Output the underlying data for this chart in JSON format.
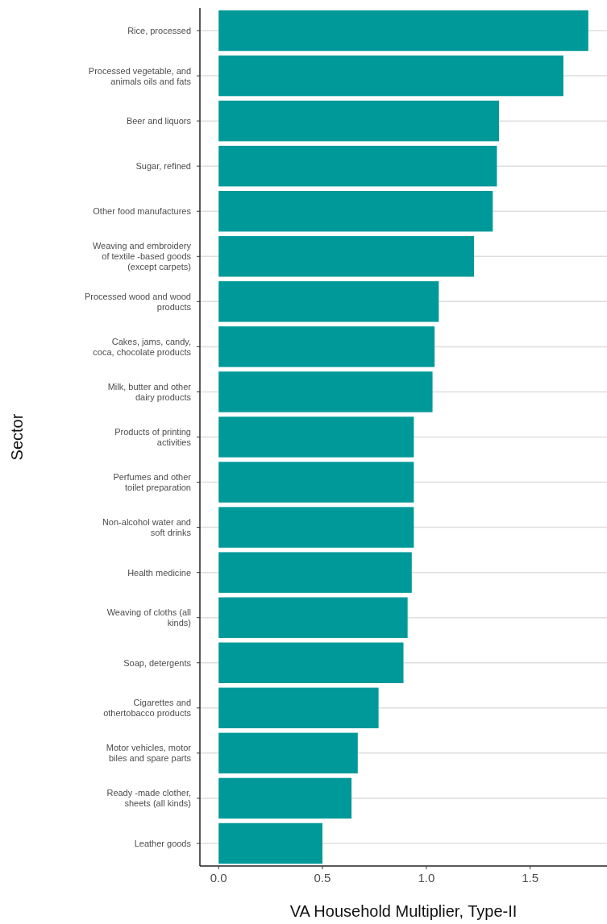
{
  "chart_data": {
    "type": "bar",
    "orientation": "horizontal",
    "xlabel": "VA Household Multiplier, Type-II",
    "ylabel": "Sector",
    "categories": [
      "Rice, processed",
      "Processed vegetable, and animals oils and fats",
      "Beer and liquors",
      "Sugar, refined",
      "Other food manufactures",
      "Weaving and embroidery of textile -based goods (except carpets)",
      "Processed wood and wood products",
      "Cakes, jams, candy, coca, chocolate products",
      "Milk, butter and other dairy products",
      "Products of printing activities",
      "Perfumes and other toilet preparation",
      "Non-alcohol water and soft drinks",
      "Health medicine",
      "Weaving of cloths (all kinds)",
      "Soap, detergents",
      "Cigarettes and othertobacco products",
      "Motor vehicles, motor biles and spare parts",
      "Ready -made clother, sheets (all kinds)",
      "Leather goods"
    ],
    "values": [
      1.78,
      1.66,
      1.35,
      1.34,
      1.32,
      1.23,
      1.06,
      1.04,
      1.03,
      0.94,
      0.94,
      0.94,
      0.93,
      0.91,
      0.89,
      0.77,
      0.67,
      0.64,
      0.5
    ],
    "color": "#009999",
    "xlim": [
      -0.09,
      1.87
    ],
    "xticks": [
      {
        "value": 0,
        "label": "0.0"
      },
      0.5,
      {
        "value": 1,
        "label": "1.0"
      },
      1.5
    ],
    "grid": "y"
  }
}
